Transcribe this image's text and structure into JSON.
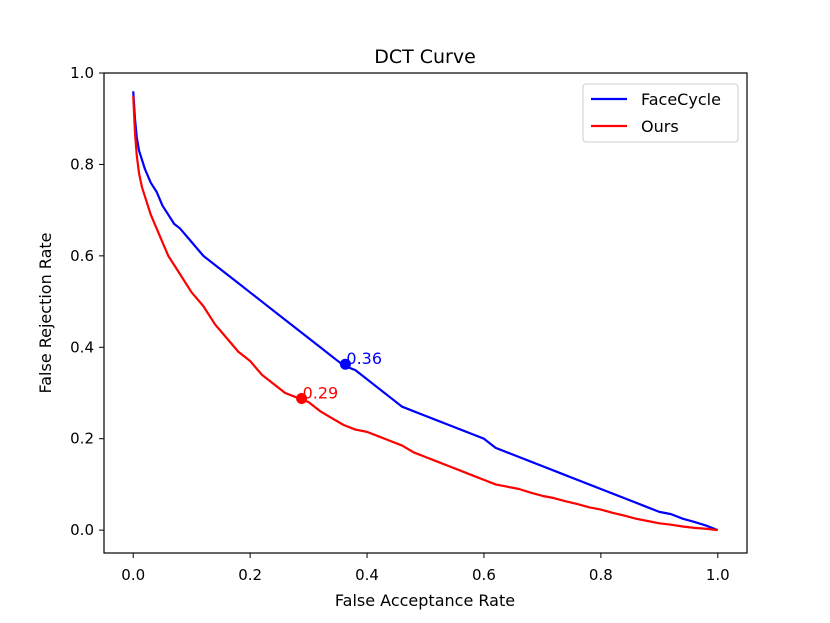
{
  "chart_data": {
    "type": "line",
    "title": "DCT Curve",
    "xlabel": "False Acceptance Rate",
    "ylabel": "False Rejection Rate",
    "xlim": [
      -0.05,
      1.05
    ],
    "ylim": [
      -0.05,
      1.0
    ],
    "xticks": [
      0.0,
      0.2,
      0.4,
      0.6,
      0.8,
      1.0
    ],
    "xtick_labels": [
      "0.0",
      "0.2",
      "0.4",
      "0.6",
      "0.8",
      "1.0"
    ],
    "yticks": [
      0.0,
      0.2,
      0.4,
      0.6,
      0.8,
      1.0
    ],
    "ytick_labels": [
      "0.0",
      "0.2",
      "0.4",
      "0.6",
      "0.8",
      "1.0"
    ],
    "grid": false,
    "legend_position": "top-right",
    "series": [
      {
        "name": "FaceCycle",
        "color": "#0000ff",
        "x": [
          0.0,
          0.003,
          0.006,
          0.01,
          0.02,
          0.03,
          0.04,
          0.05,
          0.06,
          0.07,
          0.08,
          0.1,
          0.12,
          0.14,
          0.16,
          0.18,
          0.2,
          0.22,
          0.24,
          0.26,
          0.28,
          0.3,
          0.32,
          0.34,
          0.36,
          0.38,
          0.4,
          0.42,
          0.44,
          0.46,
          0.48,
          0.5,
          0.52,
          0.54,
          0.56,
          0.58,
          0.6,
          0.62,
          0.64,
          0.66,
          0.68,
          0.7,
          0.72,
          0.74,
          0.76,
          0.78,
          0.8,
          0.82,
          0.84,
          0.86,
          0.88,
          0.9,
          0.92,
          0.94,
          0.96,
          0.98,
          1.0
        ],
        "y": [
          0.96,
          0.9,
          0.86,
          0.83,
          0.79,
          0.76,
          0.74,
          0.71,
          0.69,
          0.67,
          0.66,
          0.63,
          0.6,
          0.58,
          0.56,
          0.54,
          0.52,
          0.5,
          0.48,
          0.46,
          0.44,
          0.42,
          0.4,
          0.38,
          0.36,
          0.35,
          0.33,
          0.31,
          0.29,
          0.27,
          0.26,
          0.25,
          0.24,
          0.23,
          0.22,
          0.21,
          0.2,
          0.18,
          0.17,
          0.16,
          0.15,
          0.14,
          0.13,
          0.12,
          0.11,
          0.1,
          0.09,
          0.08,
          0.07,
          0.06,
          0.05,
          0.04,
          0.035,
          0.025,
          0.018,
          0.01,
          0.0
        ]
      },
      {
        "name": "Ours",
        "color": "#ff0000",
        "x": [
          0.0,
          0.003,
          0.006,
          0.01,
          0.015,
          0.02,
          0.03,
          0.04,
          0.05,
          0.06,
          0.07,
          0.08,
          0.09,
          0.1,
          0.12,
          0.14,
          0.16,
          0.18,
          0.2,
          0.22,
          0.24,
          0.26,
          0.28,
          0.3,
          0.32,
          0.34,
          0.36,
          0.38,
          0.4,
          0.42,
          0.44,
          0.46,
          0.48,
          0.5,
          0.52,
          0.54,
          0.56,
          0.58,
          0.6,
          0.62,
          0.64,
          0.66,
          0.68,
          0.7,
          0.72,
          0.74,
          0.76,
          0.78,
          0.8,
          0.82,
          0.84,
          0.86,
          0.88,
          0.9,
          0.92,
          0.94,
          0.96,
          0.98,
          1.0
        ],
        "y": [
          0.95,
          0.87,
          0.82,
          0.78,
          0.75,
          0.73,
          0.69,
          0.66,
          0.63,
          0.6,
          0.58,
          0.56,
          0.54,
          0.52,
          0.49,
          0.45,
          0.42,
          0.39,
          0.37,
          0.34,
          0.32,
          0.3,
          0.29,
          0.28,
          0.26,
          0.245,
          0.23,
          0.22,
          0.215,
          0.205,
          0.195,
          0.185,
          0.17,
          0.16,
          0.15,
          0.14,
          0.13,
          0.12,
          0.11,
          0.1,
          0.095,
          0.09,
          0.082,
          0.075,
          0.07,
          0.063,
          0.057,
          0.05,
          0.045,
          0.038,
          0.032,
          0.025,
          0.02,
          0.015,
          0.012,
          0.008,
          0.005,
          0.003,
          0.0
        ]
      }
    ],
    "markers": [
      {
        "series": "FaceCycle",
        "x": 0.363,
        "y": 0.363,
        "label": "0.36",
        "color": "#0000ff"
      },
      {
        "series": "Ours",
        "x": 0.288,
        "y": 0.288,
        "label": "0.29",
        "color": "#ff0000"
      }
    ]
  }
}
